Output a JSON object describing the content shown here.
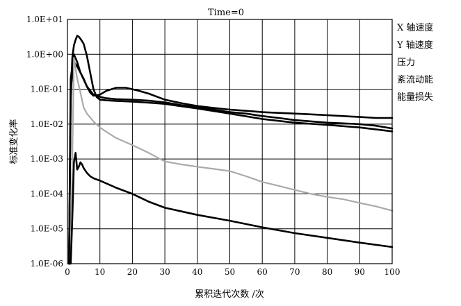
{
  "chart_data": {
    "type": "line",
    "title": "Time=0",
    "xlabel": "累积迭代次数 /次",
    "ylabel": "标准变化率",
    "xlim": [
      0,
      100
    ],
    "ylim_log10": [
      -6,
      1
    ],
    "y_scale": "log",
    "grid": true,
    "legend_position": "right",
    "x_tick_labels": [
      "0",
      "10",
      "20",
      "30",
      "40",
      "50",
      "60",
      "70",
      "80",
      "90",
      "100"
    ],
    "y_tick_labels": [
      "1.0E-06",
      "1.0E-05",
      "1.0E-04",
      "1.0E-03",
      "1.0E-02",
      "1.0E-01",
      "1.0E+00",
      "1.0E+01"
    ],
    "series": [
      {
        "name": "X 轴速度",
        "color": "#000000",
        "x": [
          0.5,
          1,
          2,
          3,
          4,
          5,
          6,
          7,
          8,
          10,
          12,
          15,
          18,
          20,
          22,
          25,
          30,
          35,
          40,
          45,
          50,
          55,
          60,
          65,
          70,
          75,
          80,
          85,
          90,
          95,
          100
        ],
        "y": [
          1e-06,
          0.1,
          0.6,
          0.45,
          0.3,
          0.2,
          0.12,
          0.08,
          0.065,
          0.07,
          0.09,
          0.11,
          0.11,
          0.1,
          0.09,
          0.075,
          0.05,
          0.04,
          0.033,
          0.029,
          0.026,
          0.024,
          0.022,
          0.021,
          0.02,
          0.019,
          0.018,
          0.017,
          0.016,
          0.015,
          0.015
        ]
      },
      {
        "name": "Y 轴速度",
        "color": "#000000",
        "x": [
          0.5,
          1,
          2,
          3,
          4,
          6,
          8,
          10,
          12,
          15,
          20,
          25,
          30,
          35,
          40,
          45,
          50,
          55,
          60,
          65,
          70,
          75,
          80,
          85,
          90,
          95,
          100
        ],
        "y": [
          1e-06,
          0.2,
          1.0,
          0.6,
          0.3,
          0.12,
          0.07,
          0.06,
          0.055,
          0.052,
          0.05,
          0.047,
          0.042,
          0.035,
          0.03,
          0.026,
          0.022,
          0.02,
          0.017,
          0.015,
          0.013,
          0.012,
          0.011,
          0.0105,
          0.01,
          0.009,
          0.0075
        ]
      },
      {
        "name": "压力",
        "color": "#000000",
        "x": [
          0.5,
          1,
          1.5,
          2,
          2.5,
          3,
          3.5,
          4,
          5,
          6,
          7,
          8,
          9,
          10,
          12,
          15,
          20,
          25,
          30,
          40,
          50,
          60,
          70,
          80,
          90,
          100
        ],
        "y": [
          1e-06,
          0.05,
          0.8,
          1.8,
          2.6,
          3.4,
          3.2,
          2.8,
          2.0,
          0.9,
          0.3,
          0.1,
          0.06,
          0.05,
          0.048,
          0.046,
          0.044,
          0.041,
          0.038,
          0.028,
          0.02,
          0.014,
          0.011,
          0.0095,
          0.008,
          0.0062
        ]
      },
      {
        "name": "紊流动能",
        "color": "#aaaaaa",
        "x": [
          1,
          2,
          3,
          4,
          5,
          6,
          8,
          10,
          12,
          15,
          20,
          25,
          30,
          35,
          40,
          45,
          50,
          55,
          60,
          65,
          70,
          75,
          80,
          85,
          90,
          95,
          100
        ],
        "y": [
          1e-06,
          0.8,
          0.2,
          0.08,
          0.03,
          0.02,
          0.012,
          0.008,
          0.006,
          0.004,
          0.0025,
          0.0015,
          0.00085,
          0.0007,
          0.0006,
          0.00052,
          0.00045,
          0.00032,
          0.00022,
          0.00017,
          0.00013,
          0.0001,
          8.2e-05,
          7e-05,
          5.5e-05,
          4.4e-05,
          3.3e-05
        ]
      },
      {
        "name": "能量损失",
        "color": "#000000",
        "x": [
          0.5,
          1,
          1.5,
          2,
          2.5,
          3,
          3.5,
          4,
          4.5,
          5,
          6,
          7,
          8,
          10,
          15,
          20,
          25,
          30,
          40,
          50,
          60,
          70,
          80,
          90,
          100
        ],
        "y": [
          1e-06,
          1e-06,
          2e-05,
          0.0008,
          0.0015,
          0.0005,
          0.0006,
          0.0008,
          0.0007,
          0.00055,
          0.0004,
          0.00032,
          0.00028,
          0.00024,
          0.00015,
          0.0001,
          6e-05,
          4e-05,
          2.5e-05,
          1.7e-05,
          1.1e-05,
          7.5e-06,
          5.5e-06,
          4e-06,
          3e-06
        ]
      }
    ]
  }
}
